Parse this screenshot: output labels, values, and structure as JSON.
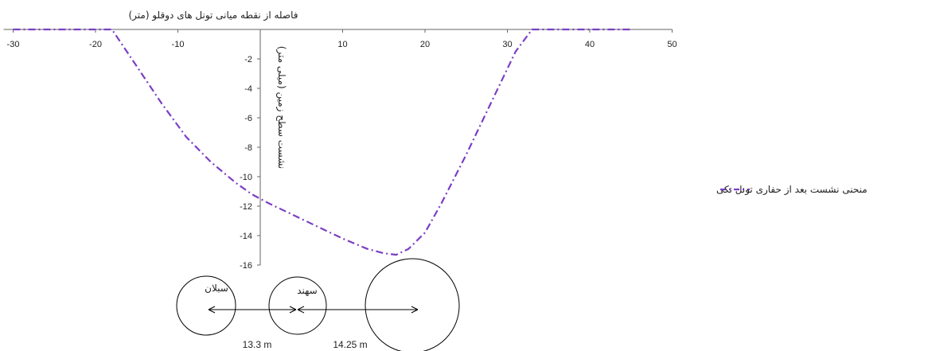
{
  "chart_data": {
    "type": "line",
    "title": "",
    "xlabel": "فاصله از نقطه میانی تونل های دوقلو (متر)",
    "ylabel": "نشست سطح زمین (میلی متر)",
    "xlim": [
      -30,
      50
    ],
    "ylim": [
      -16,
      0
    ],
    "x_ticks": [
      -30,
      -20,
      -10,
      10,
      20,
      30,
      40,
      50
    ],
    "y_ticks": [
      -2,
      -4,
      -6,
      -8,
      -10,
      -12,
      -14,
      -16
    ],
    "grid": false,
    "legend_position": "right",
    "series": [
      {
        "name": "منحنی نشست بعد از حفاری تونل تکی",
        "color": "#7b3fc4",
        "line_style": "dash-dot",
        "x": [
          -30,
          -18,
          -15,
          -12,
          -9,
          -6,
          -3,
          -1,
          1,
          4,
          7,
          10,
          13,
          15,
          16.5,
          18,
          20,
          22,
          25,
          28,
          31,
          33,
          35,
          40,
          45
        ],
        "y": [
          0,
          0,
          -2.5,
          -5,
          -7.3,
          -9,
          -10.4,
          -11.2,
          -11.8,
          -12.6,
          -13.4,
          -14.2,
          -14.9,
          -15.2,
          -15.3,
          -14.9,
          -13.8,
          -11.8,
          -8.5,
          -5,
          -1.5,
          0,
          0,
          0,
          0
        ]
      }
    ]
  },
  "tunnels": {
    "labels": [
      "سبلان",
      "سهند"
    ],
    "dimensions": [
      "13.3 m",
      "14.25 m"
    ]
  }
}
